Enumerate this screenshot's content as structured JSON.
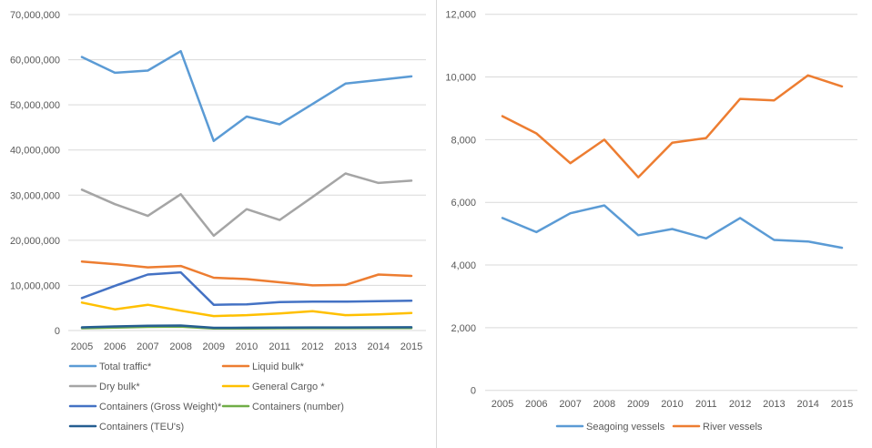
{
  "page": {
    "background_color": "#ffffff",
    "divider_color": "#d9d9d9",
    "text_color": "#595959",
    "gridline_color": "#d9d9d9"
  },
  "chart_data": [
    {
      "id": "cargo-traffic",
      "type": "line",
      "title": "",
      "xlabel": "",
      "ylabel": "",
      "grid": true,
      "legend_position": "bottom-left",
      "categories": [
        "2005",
        "2006",
        "2007",
        "2008",
        "2009",
        "2010",
        "2011",
        "2012",
        "2013",
        "2014",
        "2015"
      ],
      "y_axis": {
        "min": 0,
        "max": 70000000,
        "step": 10000000,
        "tick_labels": [
          "0",
          "10,000,000",
          "20,000,000",
          "30,000,000",
          "40,000,000",
          "50,000,000",
          "60,000,000",
          "70,000,000"
        ]
      },
      "series": [
        {
          "name": "Total traffic*",
          "color": "#5B9BD5",
          "values": [
            60600000,
            57100000,
            57600000,
            61900000,
            42000000,
            47400000,
            45700000,
            50200000,
            54700000,
            55500000,
            56300000
          ]
        },
        {
          "name": "Liquid bulk*",
          "color": "#ED7D31",
          "values": [
            15300000,
            14700000,
            14000000,
            14300000,
            11700000,
            11400000,
            10700000,
            10000000,
            10100000,
            12400000,
            12100000
          ]
        },
        {
          "name": "Dry bulk*",
          "color": "#A5A5A5",
          "values": [
            31200000,
            28000000,
            25400000,
            30200000,
            21000000,
            26900000,
            24500000,
            29600000,
            34800000,
            32700000,
            33200000
          ]
        },
        {
          "name": "General Cargo *",
          "color": "#FFC000",
          "values": [
            6200000,
            4700000,
            5700000,
            4400000,
            3200000,
            3400000,
            3800000,
            4300000,
            3400000,
            3600000,
            3900000
          ]
        },
        {
          "name": "Containers (Gross Weight)*",
          "color": "#4472C4",
          "values": [
            7200000,
            9900000,
            12400000,
            12900000,
            5700000,
            5800000,
            6300000,
            6400000,
            6400000,
            6500000,
            6600000
          ]
        },
        {
          "name": "Containers (number)",
          "color": "#70AD47",
          "values": [
            500000,
            650000,
            800000,
            850000,
            450000,
            470000,
            500000,
            520000,
            520000,
            540000,
            550000
          ]
        },
        {
          "name": "Containers (TEU's)",
          "color": "#255E91",
          "values": [
            700000,
            900000,
            1050000,
            1100000,
            600000,
            620000,
            650000,
            680000,
            680000,
            700000,
            720000
          ]
        }
      ]
    },
    {
      "id": "vessels",
      "type": "line",
      "title": "",
      "xlabel": "",
      "ylabel": "",
      "grid": true,
      "legend_position": "bottom-center",
      "categories": [
        "2005",
        "2006",
        "2007",
        "2008",
        "2009",
        "2010",
        "2011",
        "2012",
        "2013",
        "2014",
        "2015"
      ],
      "y_axis": {
        "min": 0,
        "max": 12000,
        "step": 2000,
        "tick_labels": [
          "0",
          "2,000",
          "4,000",
          "6,000",
          "8,000",
          "10,000",
          "12,000"
        ]
      },
      "series": [
        {
          "name": "Seagoing vessels",
          "color": "#5B9BD5",
          "values": [
            5500,
            5050,
            5650,
            5900,
            4950,
            5150,
            4850,
            5500,
            4800,
            4750,
            4550
          ]
        },
        {
          "name": "River vessels",
          "color": "#ED7D31",
          "values": [
            8750,
            8200,
            7250,
            8000,
            6800,
            7900,
            8050,
            9300,
            9250,
            10050,
            9700
          ]
        }
      ]
    }
  ]
}
